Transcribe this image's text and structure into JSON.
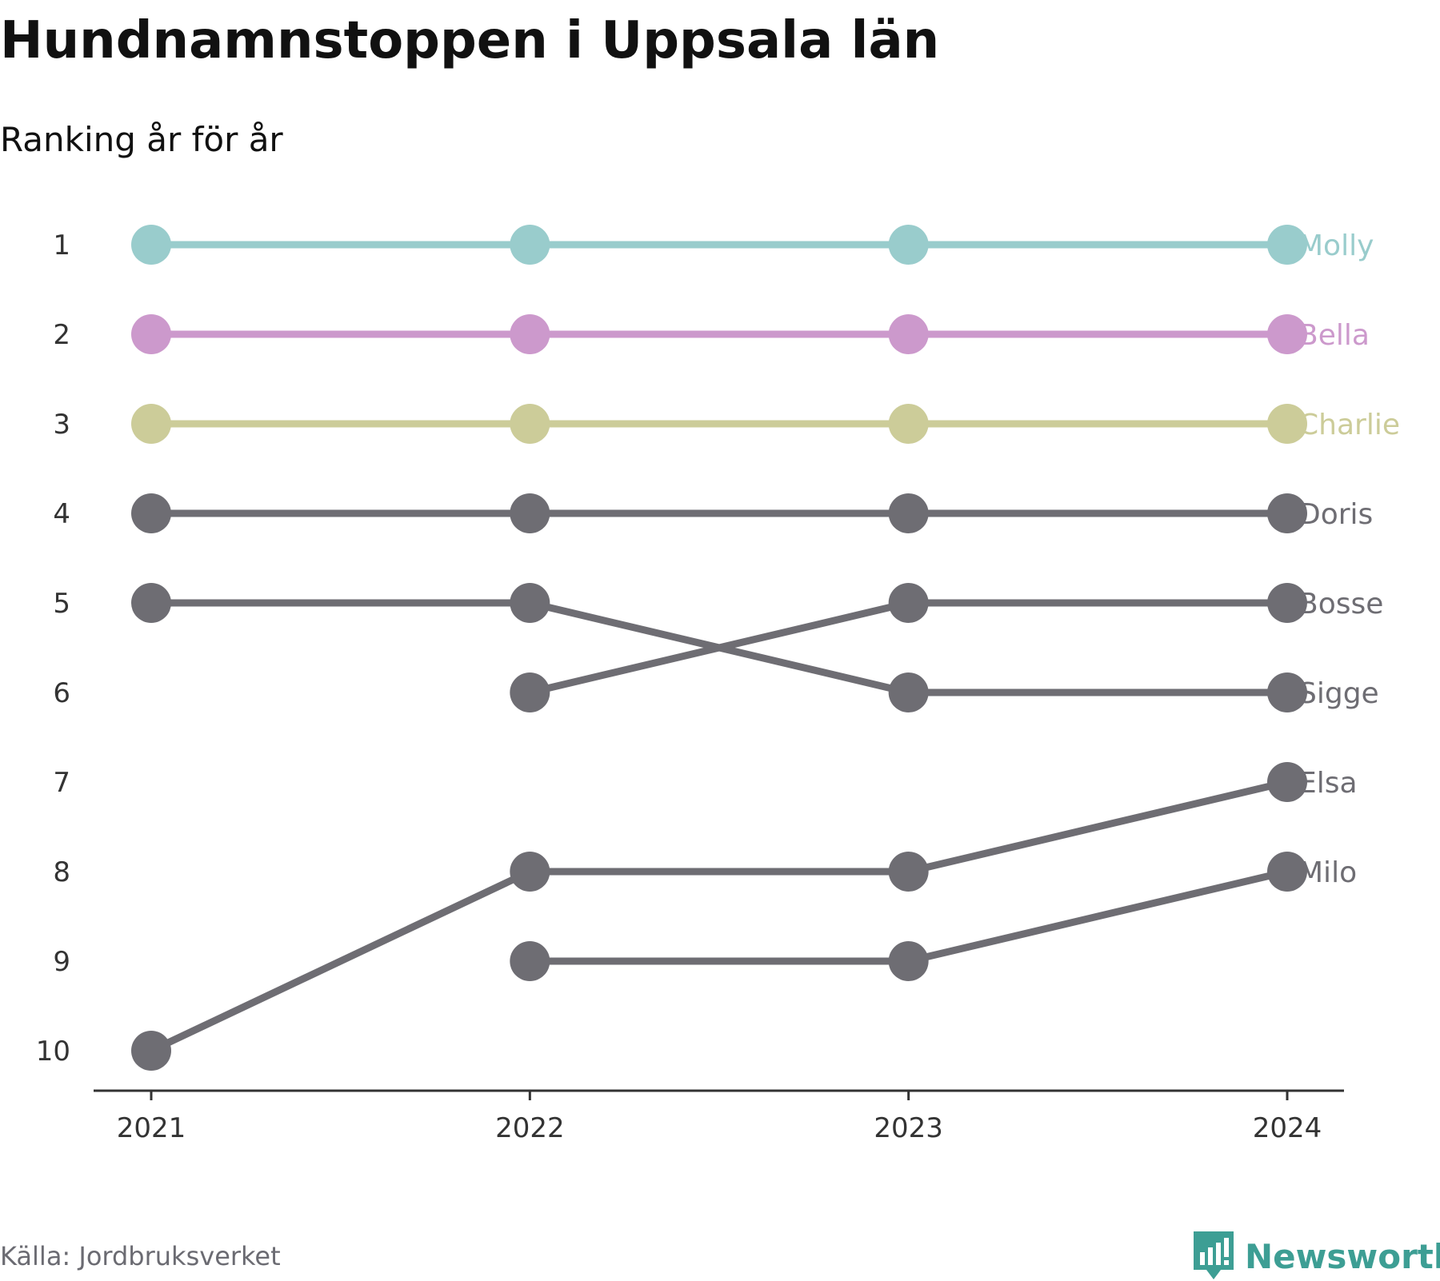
{
  "title": "Hundnamnstoppen i Uppsala län",
  "subtitle": "Ranking år för år",
  "source": "Källa: Jordbruksverket",
  "brand": {
    "name": "Newsworthy",
    "color": "#3d9e94"
  },
  "chart_data": {
    "type": "line",
    "title": "Hundnamnstoppen i Uppsala län",
    "subtitle": "Ranking år för år",
    "x": [
      "2021",
      "2022",
      "2023",
      "2024"
    ],
    "y_ticks": [
      1,
      2,
      3,
      4,
      5,
      6,
      7,
      8,
      9,
      10
    ],
    "y_inverted": true,
    "ylim": [
      1,
      10
    ],
    "grid": false,
    "legend": "end-labels",
    "series": [
      {
        "name": "Molly",
        "color": "#99cccc",
        "values": [
          1,
          1,
          1,
          1
        ]
      },
      {
        "name": "Bella",
        "color": "#cc99cc",
        "values": [
          2,
          2,
          2,
          2
        ]
      },
      {
        "name": "Charlie",
        "color": "#cccc99",
        "values": [
          3,
          3,
          3,
          3
        ]
      },
      {
        "name": "Doris",
        "color": "#6e6d73",
        "values": [
          4,
          4,
          4,
          4
        ]
      },
      {
        "name": "Bosse",
        "color": "#6e6d73",
        "values": [
          null,
          6,
          5,
          5
        ]
      },
      {
        "name": "Sigge",
        "color": "#6e6d73",
        "values": [
          5,
          5,
          6,
          6
        ]
      },
      {
        "name": "Elsa",
        "color": "#6e6d73",
        "values": [
          10,
          8,
          8,
          7
        ]
      },
      {
        "name": "Milo",
        "color": "#6e6d73",
        "values": [
          null,
          9,
          9,
          8
        ]
      }
    ]
  }
}
